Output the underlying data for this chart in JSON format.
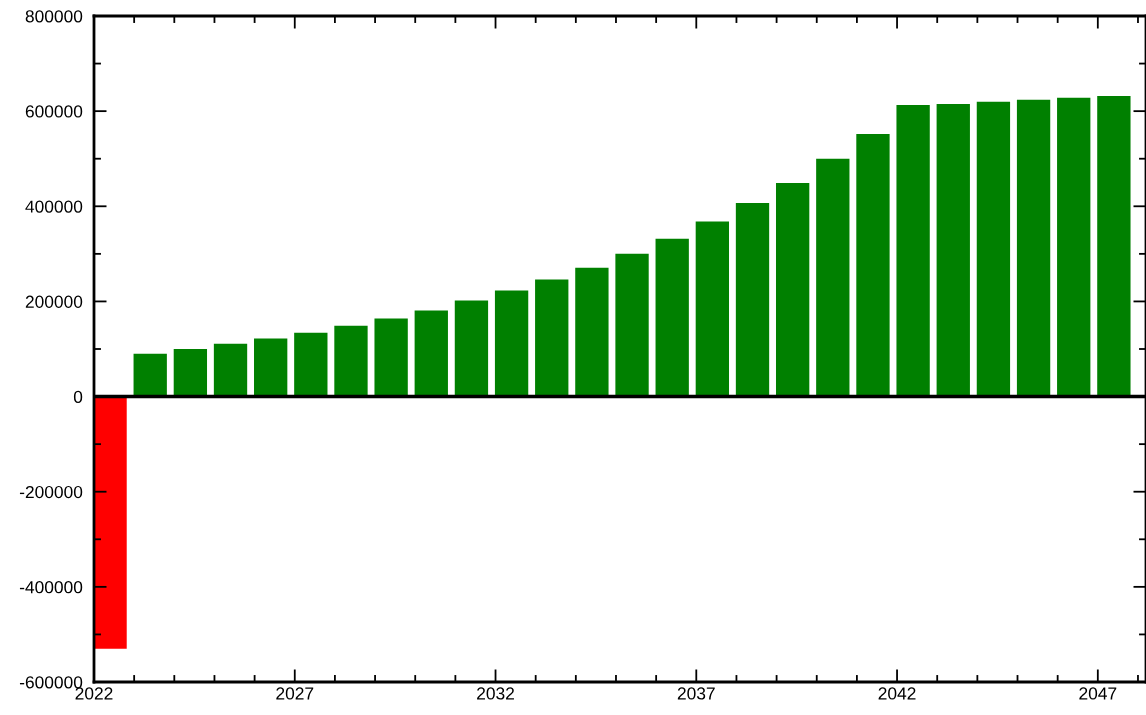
{
  "chart_data": {
    "type": "bar",
    "x": [
      2022.4,
      2023.4,
      2024.4,
      2025.4,
      2026.4,
      2027.4,
      2028.4,
      2029.4,
      2030.4,
      2031.4,
      2032.4,
      2033.4,
      2034.4,
      2035.4,
      2036.4,
      2037.4,
      2038.4,
      2039.4,
      2040.4,
      2041.4,
      2042.4,
      2043.4,
      2044.4,
      2045.4,
      2046.4,
      2047.4
    ],
    "values": [
      -530000,
      90000,
      100000,
      111000,
      122000,
      134000,
      149000,
      164000,
      181000,
      202000,
      223000,
      246000,
      271000,
      300000,
      332000,
      368000,
      407000,
      449000,
      500000,
      552000,
      613000,
      615000,
      620000,
      624000,
      628000,
      632000
    ],
    "colors": [
      "#ff0000",
      "#008000",
      "#008000",
      "#008000",
      "#008000",
      "#008000",
      "#008000",
      "#008000",
      "#008000",
      "#008000",
      "#008000",
      "#008000",
      "#008000",
      "#008000",
      "#008000",
      "#008000",
      "#008000",
      "#008000",
      "#008000",
      "#008000",
      "#008000",
      "#008000",
      "#008000",
      "#008000",
      "#008000",
      "#008000"
    ],
    "xlim": [
      2022,
      2048.2
    ],
    "xticks": [
      2022,
      2027,
      2032,
      2037,
      2042,
      2047
    ],
    "ylim": [
      -600000,
      800000
    ],
    "yticks": [
      -600000,
      -400000,
      -200000,
      0,
      200000,
      400000,
      600000,
      800000
    ],
    "ref_lines": [
      {
        "axis": "y",
        "value": 0,
        "color": "#000000"
      }
    ],
    "grid": false,
    "legend": false
  }
}
